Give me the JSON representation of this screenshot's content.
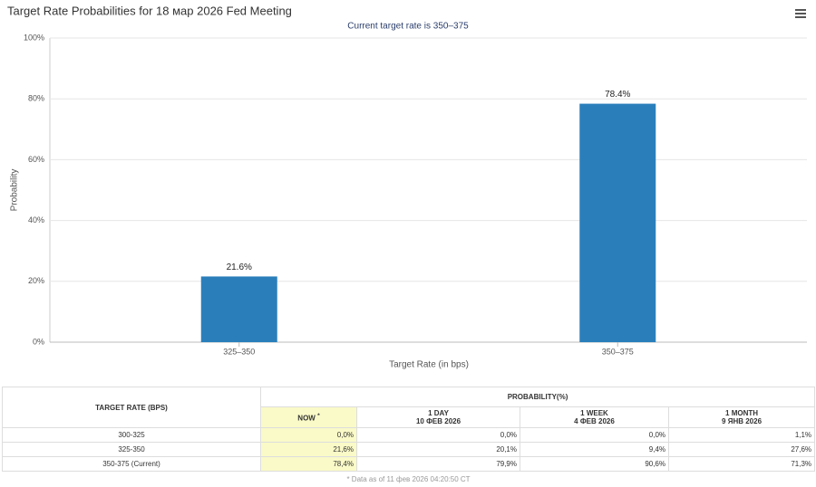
{
  "chart_data": {
    "type": "bar",
    "title": "Target Rate Probabilities for 18 мар 2026 Fed Meeting",
    "subtitle": "Current target rate is 350–375",
    "x_label": "Target Rate (in bps)",
    "y_label": "Probability",
    "categories": [
      "325–350",
      "350–375"
    ],
    "values": [
      21.6,
      78.4
    ],
    "value_labels": [
      "21.6%",
      "78.4%"
    ],
    "color": "#2a7fbb",
    "ylim": [
      0,
      100
    ],
    "yticks": [
      {
        "value": 0,
        "label": "0%"
      },
      {
        "value": 20,
        "label": "20%"
      },
      {
        "value": 40,
        "label": "40%"
      },
      {
        "value": 60,
        "label": "60%"
      },
      {
        "value": 80,
        "label": "80%"
      },
      {
        "value": 100,
        "label": "100%"
      }
    ],
    "grid": true
  },
  "table": {
    "header": {
      "rate": "TARGET RATE (BPS)",
      "probability": "PROBABILITY(%)",
      "columns": [
        {
          "name": "NOW",
          "mark": "*"
        },
        {
          "name": "1 DAY",
          "date": "10 ФЕВ 2026"
        },
        {
          "name": "1 WEEK",
          "date": "4 ФЕВ 2026"
        },
        {
          "name": "1 MONTH",
          "date": "9 ЯНВ 2026"
        }
      ]
    },
    "rows": [
      [
        "300-325",
        "0,0%",
        "0,0%",
        "0,0%",
        "1,1%"
      ],
      [
        "325-350",
        "21,6%",
        "20,1%",
        "9,4%",
        "27,6%"
      ],
      [
        "350-375 (Current)",
        "78,4%",
        "79,9%",
        "90,6%",
        "71,3%"
      ]
    ],
    "footnote": "* Data as of 11 фев 2026 04:20:50 CT"
  }
}
